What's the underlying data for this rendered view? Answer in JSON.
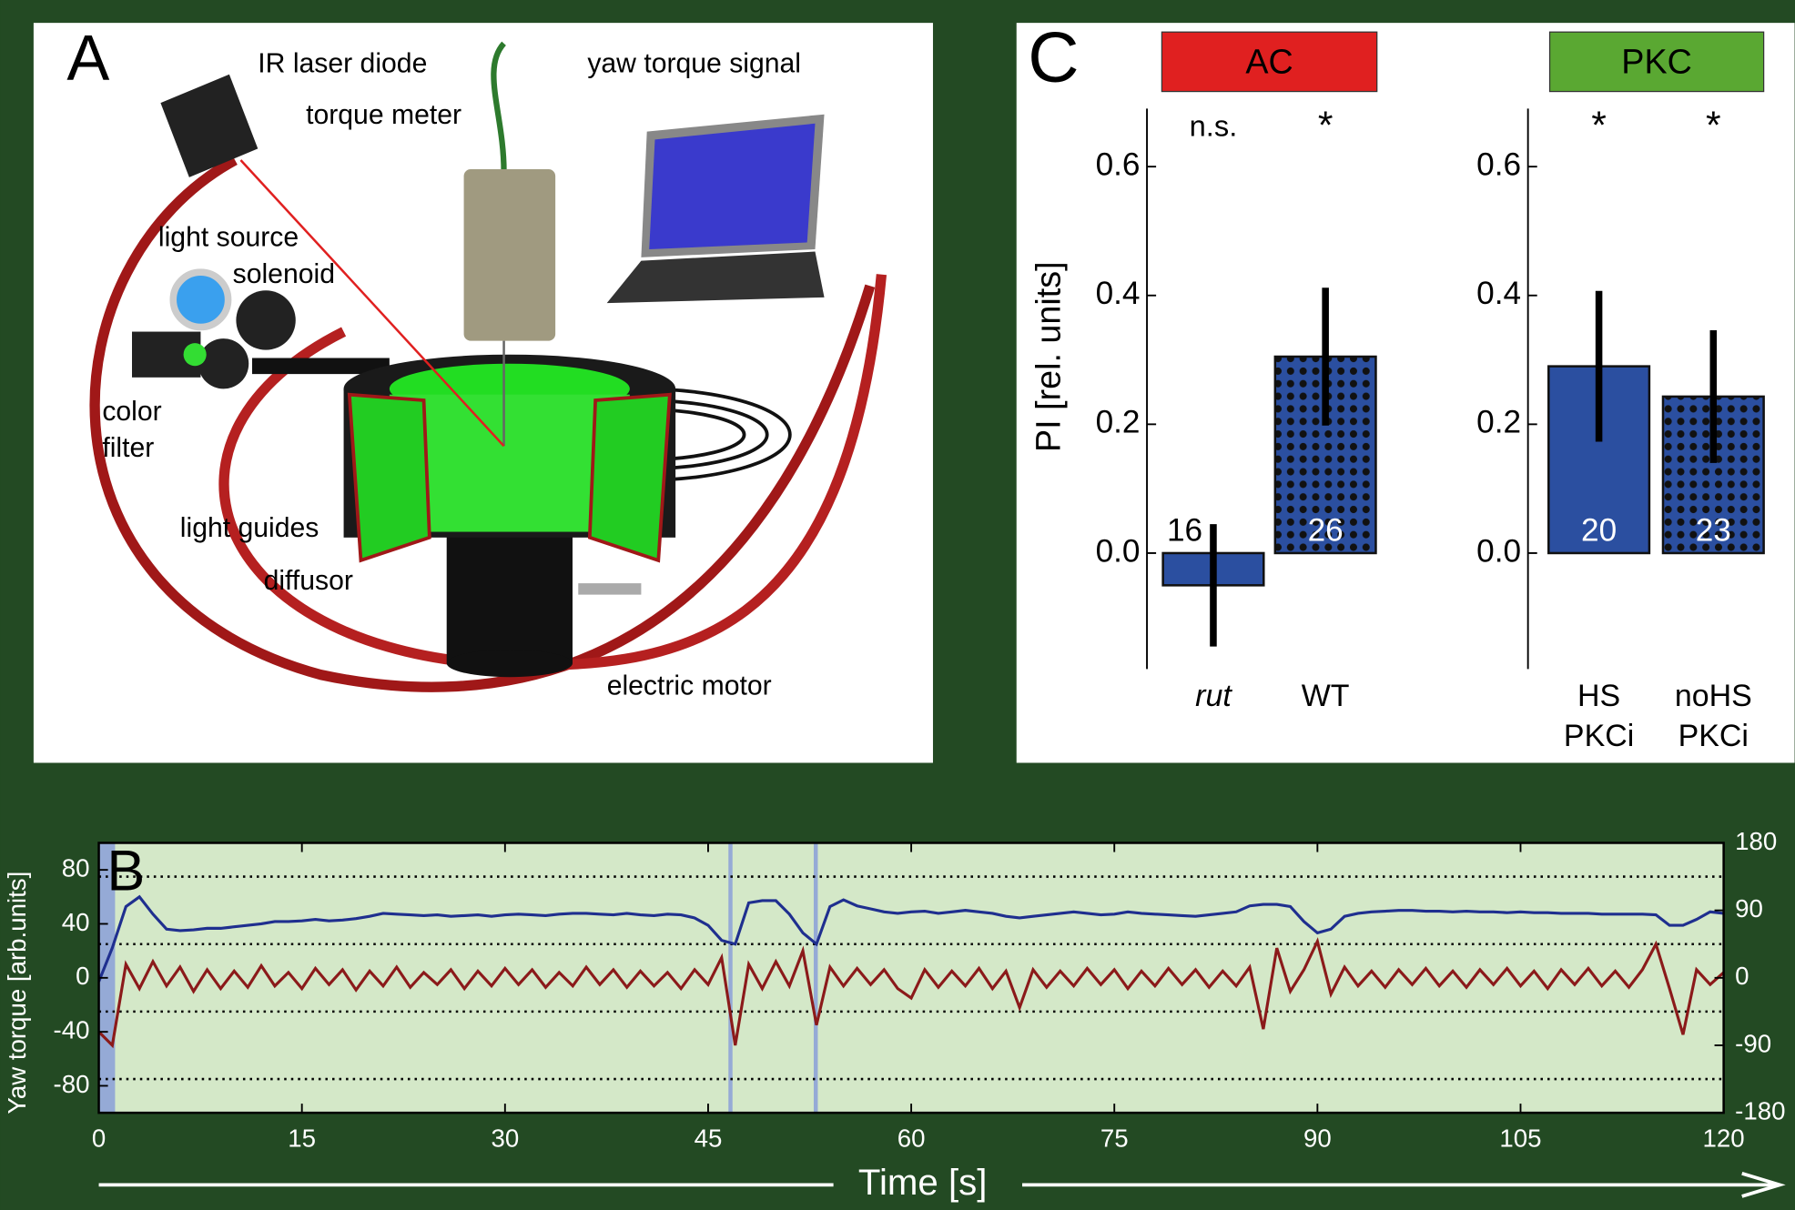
{
  "panel_a": {
    "label": "A",
    "labels": [
      "IR laser diode",
      "yaw torque signal",
      "torque meter",
      "light source",
      "solenoid",
      "color",
      "filter",
      "light guides",
      "diffusor",
      "electric motor"
    ]
  },
  "chart_data": [
    {
      "type": "bar",
      "panel_label": "C",
      "title": "AC",
      "title_color": "#e02020",
      "ylabel": "PI [rel. units]",
      "categories": [
        [
          "rut"
        ],
        [
          "WT"
        ]
      ],
      "italic_categories": [
        true,
        false
      ],
      "values": [
        -0.05,
        0.305
      ],
      "errors": [
        0.095,
        0.107
      ],
      "sample_sizes": [
        16,
        26
      ],
      "significance": [
        "n.s.",
        "*"
      ],
      "dotted": [
        false,
        true
      ],
      "color": "#2b4fa0",
      "ylim": [
        -0.18,
        0.69
      ],
      "yticks": [
        {
          "value": 0,
          "label": "0.0"
        },
        0.2,
        0.4,
        0.6
      ]
    },
    {
      "type": "bar",
      "title": "PKC",
      "title_color": "#5aa832",
      "categories": [
        [
          "HS",
          "PKCi"
        ],
        [
          "noHS",
          "PKCi"
        ]
      ],
      "italic_categories": [
        false,
        false
      ],
      "values": [
        0.29,
        0.243
      ],
      "errors": [
        0.117,
        0.103
      ],
      "sample_sizes": [
        20,
        23
      ],
      "significance": [
        "*",
        "*"
      ],
      "dotted": [
        false,
        true
      ],
      "color": "#2b4fa0",
      "ylim": [
        -0.18,
        0.69
      ],
      "yticks": [
        {
          "value": 0,
          "label": "0.0"
        },
        0.2,
        0.4,
        0.6
      ]
    },
    {
      "type": "line",
      "panel_label": "B",
      "xlabel": "Time [s]",
      "ylabel": "Yaw torque [arb.units]",
      "x": [
        0,
        1,
        2,
        3,
        4,
        5,
        6,
        7,
        8,
        9,
        10,
        11,
        12,
        13,
        14,
        15,
        16,
        17,
        18,
        19,
        20,
        21,
        22,
        23,
        24,
        25,
        26,
        27,
        28,
        29,
        30,
        31,
        32,
        33,
        34,
        35,
        36,
        37,
        38,
        39,
        40,
        41,
        42,
        43,
        44,
        45,
        46,
        47,
        48,
        49,
        50,
        51,
        52,
        53,
        54,
        55,
        56,
        57,
        58,
        59,
        60,
        61,
        62,
        63,
        64,
        65,
        66,
        67,
        68,
        69,
        70,
        71,
        72,
        73,
        74,
        75,
        76,
        77,
        78,
        79,
        80,
        81,
        82,
        83,
        84,
        85,
        86,
        87,
        88,
        89,
        90,
        91,
        92,
        93,
        94,
        95,
        96,
        97,
        98,
        99,
        100,
        101,
        102,
        103,
        104,
        105,
        106,
        107,
        108,
        109,
        110,
        111,
        112,
        113,
        114,
        115,
        116,
        117,
        118,
        119,
        120
      ],
      "series": [
        {
          "color": "#8b1a1a",
          "values": [
            -40,
            -50,
            10,
            -8,
            12,
            -6,
            8,
            -10,
            6,
            -8,
            5,
            -7,
            9,
            -6,
            4,
            -8,
            7,
            -5,
            6,
            -9,
            5,
            -6,
            8,
            -7,
            4,
            -5,
            6,
            -8,
            5,
            -6,
            7,
            -5,
            6,
            -7,
            4,
            -6,
            8,
            -5,
            6,
            -7,
            5,
            -6,
            4,
            -8,
            6,
            -5,
            15,
            -50,
            10,
            -8,
            12,
            -6,
            20,
            -35,
            8,
            -6,
            7,
            -5,
            6,
            -8,
            -15,
            6,
            -7,
            5,
            -6,
            7,
            -8,
            5,
            -22,
            6,
            -7,
            5,
            -6,
            7,
            -5,
            6,
            -8,
            5,
            -6,
            7,
            -5,
            6,
            -7,
            5,
            -6,
            8,
            -38,
            22,
            -10,
            6,
            27,
            -12,
            8,
            -6,
            5,
            -7,
            6,
            -5,
            7,
            -6,
            5,
            -7,
            6,
            -5,
            7,
            -6,
            5,
            -8,
            6,
            -5,
            7,
            -6,
            5,
            -7,
            6,
            25,
            -8,
            -42,
            6,
            -5,
            4
          ]
        },
        {
          "color": "#1f2f8f",
          "axis": "y2",
          "values": [
            -5,
            40,
            95,
            108,
            85,
            65,
            63,
            64,
            66,
            66,
            68,
            70,
            72,
            75,
            75,
            76,
            78,
            76,
            77,
            79,
            82,
            86,
            85,
            84,
            83,
            84,
            82,
            83,
            84,
            82,
            84,
            85,
            84,
            83,
            85,
            86,
            86,
            85,
            84,
            86,
            84,
            83,
            85,
            84,
            80,
            70,
            50,
            45,
            100,
            103,
            103,
            85,
            60,
            45,
            95,
            104,
            96,
            92,
            88,
            86,
            88,
            89,
            86,
            88,
            90,
            88,
            86,
            82,
            80,
            82,
            84,
            86,
            88,
            86,
            84,
            85,
            88,
            86,
            85,
            84,
            83,
            82,
            84,
            86,
            88,
            96,
            98,
            98,
            95,
            75,
            60,
            65,
            82,
            86,
            88,
            89,
            90,
            90,
            89,
            89,
            88,
            89,
            88,
            88,
            87,
            88,
            87,
            87,
            86,
            86,
            86,
            85,
            85,
            85,
            85,
            84,
            70,
            70,
            78,
            88,
            86
          ]
        }
      ],
      "xlim": [
        0,
        120
      ],
      "xticks": [
        0,
        15,
        30,
        45,
        60,
        75,
        90,
        105,
        120
      ],
      "ylim": [
        -100,
        100
      ],
      "yticks": [
        -80,
        -40,
        0,
        40,
        80
      ],
      "y2lim": [
        -180,
        180
      ],
      "y2ticks": [
        -180,
        -90,
        0,
        90,
        180
      ],
      "y2_grid": [
        -135,
        -45,
        45,
        135
      ],
      "highlight_spans": [
        [
          0,
          1.2
        ],
        [
          46.5,
          46.8
        ],
        [
          52.8,
          53.1
        ]
      ],
      "background": "#d4e8c8"
    }
  ]
}
